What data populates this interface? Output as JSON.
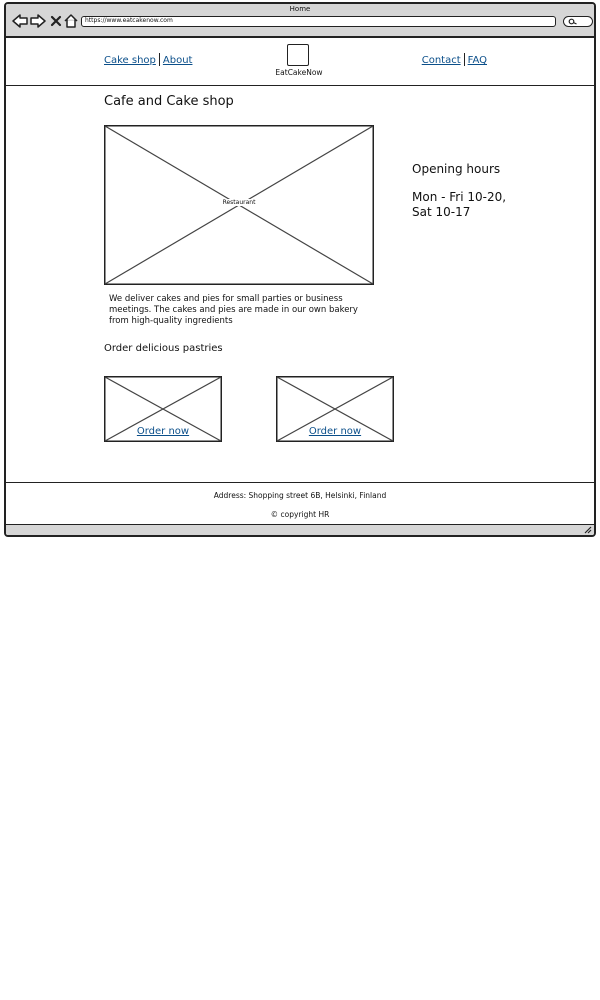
{
  "browser": {
    "title": "Home",
    "url": "https://www.eatcakenow.com",
    "icons": [
      "back-arrow-icon",
      "forward-arrow-icon",
      "close-x-icon",
      "home-icon",
      "search-icon"
    ]
  },
  "header": {
    "nav_left": [
      "Cake shop",
      "About"
    ],
    "nav_right": [
      "Contact",
      "FAQ"
    ],
    "logo_text": "EatCakeNow"
  },
  "main": {
    "title": "Cafe and Cake shop",
    "hero_label": "Restaurant",
    "opening_hours": {
      "title": "Opening hours",
      "lines": [
        "Mon - Fri 10-20,",
        "Sat 10-17"
      ]
    },
    "description": "We deliver cakes and pies for small parties or business meetings. The cakes and pies are made in our own bakery from high-quality ingredients",
    "section_heading": "Order delicious pastries",
    "cards": [
      {
        "link": "Order now"
      },
      {
        "link": "Order now"
      }
    ]
  },
  "footer": {
    "address": "Address: Shopping street 6B, Helsinki, Finland",
    "copyright": "© copyright HR"
  }
}
